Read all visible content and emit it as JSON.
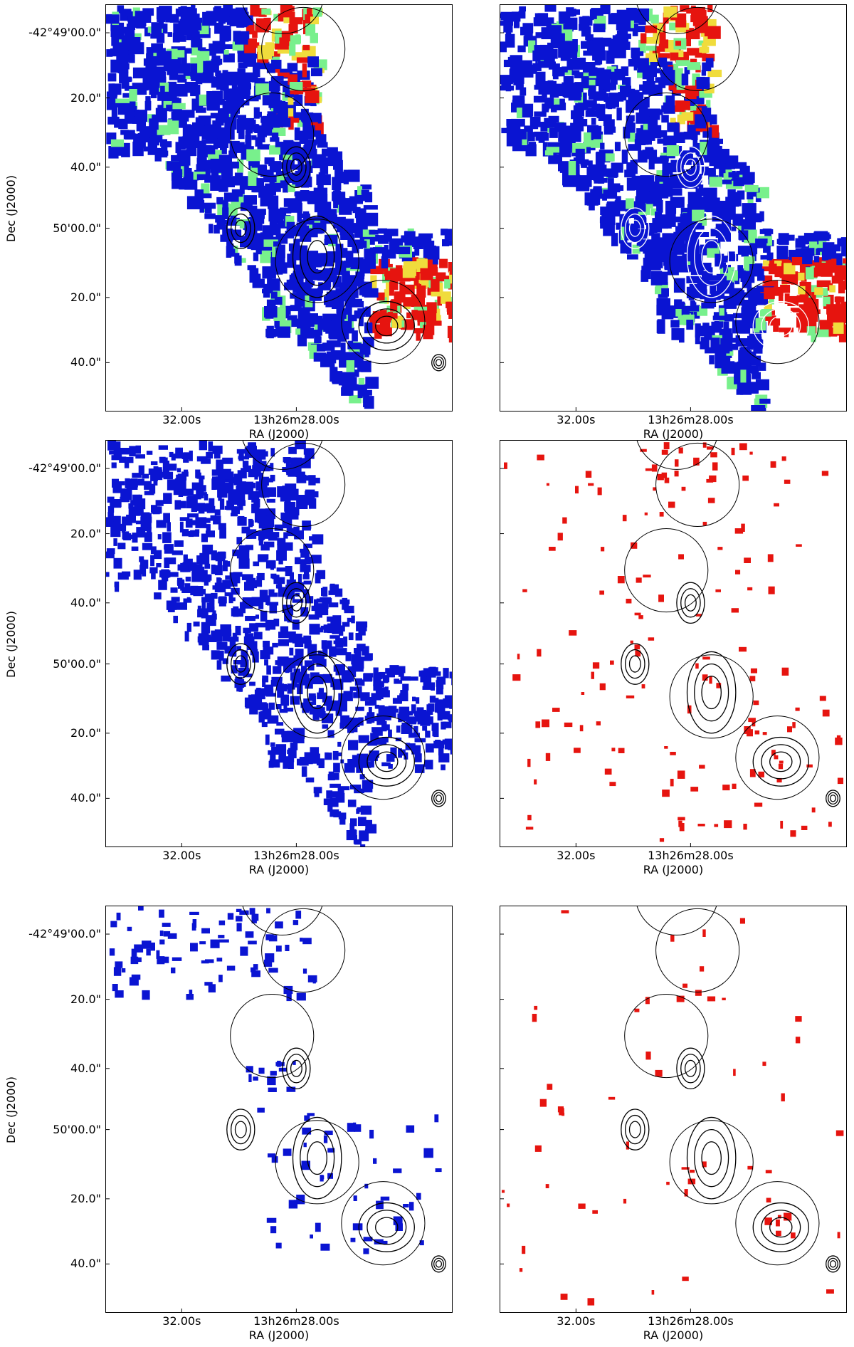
{
  "figure": {
    "x_axis_label": "RA (J2000)",
    "y_axis_label": "Dec (J2000)",
    "x_tick_labels": [
      "32.00s",
      "13h26m28.00s"
    ],
    "y_tick_labels": [
      "-42°49'00.0\"",
      "20.0\"",
      "40.0\"",
      "50'00.0\"",
      "20.0\"",
      "40.0\""
    ],
    "colors": {
      "blue": "#0a14d2",
      "red": "#e6140f",
      "green": "#78f08c",
      "yellow": "#f0dc3c",
      "contour": "#000000"
    },
    "panels": [
      {
        "id": "row1-left",
        "map": "multicolor",
        "contours": "black",
        "shows_y_axis": true
      },
      {
        "id": "row1-right",
        "map": "multicolor",
        "contours": "white",
        "shows_y_axis": false
      },
      {
        "id": "row2-left",
        "map": "blue",
        "contours": "black",
        "shows_y_axis": true
      },
      {
        "id": "row2-right",
        "map": "red",
        "contours": "black",
        "shows_y_axis": false
      },
      {
        "id": "row3-left",
        "map": "blue-sparse",
        "contours": "black",
        "shows_y_axis": true
      },
      {
        "id": "row3-right",
        "map": "red-sparse",
        "contours": "black",
        "shows_y_axis": false
      }
    ]
  }
}
